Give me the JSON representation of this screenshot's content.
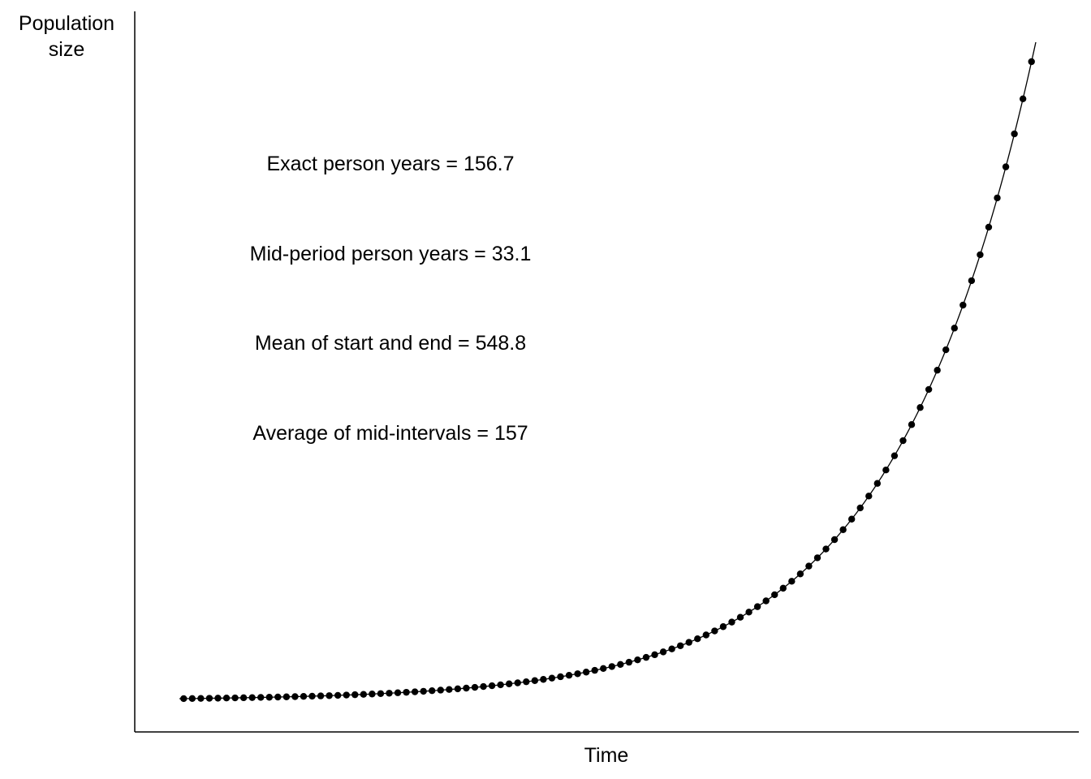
{
  "chart_data": {
    "type": "scatter",
    "title": "",
    "xlabel": "Time",
    "ylabel": "Population size",
    "ylabel_lines": [
      "Population",
      "size"
    ],
    "xlim": [
      0,
      100
    ],
    "ylim": [
      0,
      1.05
    ],
    "grid": false,
    "legend": "none",
    "curve": {
      "description_kind": "exponential",
      "growth_rate_per_unit_time": 0.06,
      "points_per_unit_time": 1
    },
    "annotations": [
      {
        "text": "Exact person years = 156.7",
        "color": "#000000"
      },
      {
        "text": "Mid-period person years = 33.1",
        "color": "#000000"
      },
      {
        "text": "Mean of start and end = 548.8",
        "color": "#000000"
      },
      {
        "text": "Average of mid-intervals = 157",
        "color": "#ff0000"
      }
    ],
    "colors": {
      "points": "#000000",
      "line": "#000000",
      "axis": "#000000",
      "highlight": "#ff0000"
    }
  }
}
